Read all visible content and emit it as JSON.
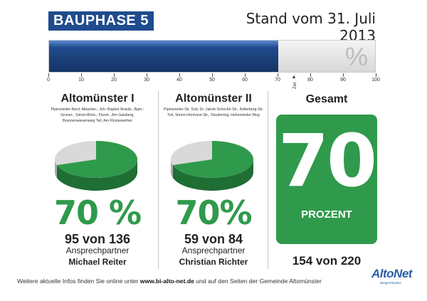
{
  "header": {
    "phase": "BAUPHASE 5",
    "stand": "Stand vom 31. Juli 2013"
  },
  "progress": {
    "value_percent": 70,
    "goal_percent": 75,
    "percent_sign": "%",
    "scale_labels": [
      "0",
      "10",
      "20",
      "30",
      "40",
      "50",
      "60",
      "70",
      "80",
      "90",
      "100"
    ],
    "goal_label": "Ziel",
    "fill_color": "#1f4c8f"
  },
  "areas": [
    {
      "title": "Altomünster I",
      "streets": "Pipinsrieder-Nord, Aibacher-, Joh.-Baptist-Straub-, Bgm.-Gruner-, Simon-Böck-, Flurstr., Am Gaisberg, Brunnenwiesenweg Teil, Am Klosterweiher",
      "percent": "70 %",
      "share": 0.7,
      "count": "95 von 136",
      "contact_label": "Ansprechpartner",
      "contact_name": "Michael Reiter"
    },
    {
      "title": "Altomünster II",
      "streets": "Pipinsrieder-Str. Süd, Dr.-Jakob-Scheckh-Str., Kellerberg-Str. Teil, Simon-Hörmann-Str., Stauferring, Hohenrieder Weg",
      "percent": "70%",
      "share": 0.7,
      "count": "59 von 84",
      "contact_label": "Ansprechpartner",
      "contact_name": "Christian Richter"
    }
  ],
  "total": {
    "title": "Gesamt",
    "value": "70",
    "unit": "PROZENT",
    "count": "154 von 220"
  },
  "footer": {
    "text_before": "Weitere aktuelle Infos finden Sie online unter ",
    "url": "www.bi-alto-net.de",
    "text_after": " und auf den Seiten der Gemeinde Altomünster"
  },
  "logo": {
    "name": "AltoNet",
    "tagline": "Bürgerinitiative"
  },
  "colors": {
    "green": "#2f9a4b",
    "blue": "#1f4c8f",
    "grey": "#d9d9d9"
  }
}
